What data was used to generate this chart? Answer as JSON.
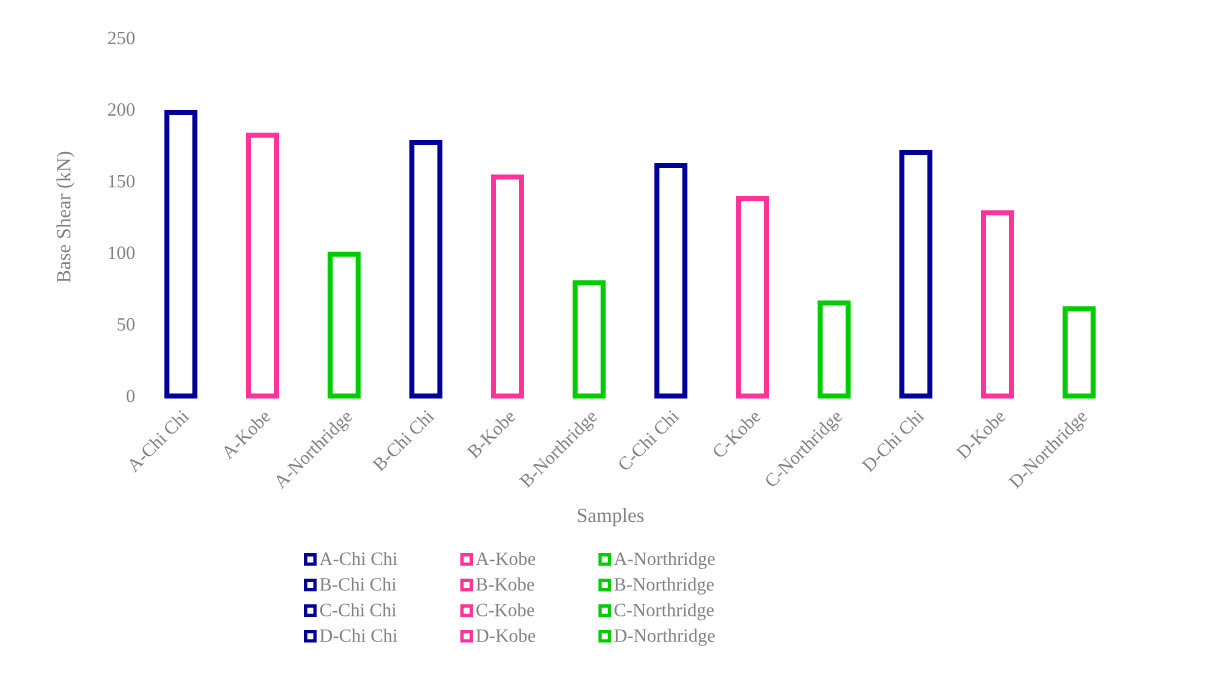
{
  "chart_data": {
    "type": "bar",
    "xlabel": "Samples",
    "ylabel": "Base Shear (kN)",
    "categories": [
      "A-Chi Chi",
      "A-Kobe",
      "A-Northridge",
      "B-Chi Chi",
      "B-Kobe",
      "B-Northridge",
      "C-Chi Chi",
      "C-Kobe",
      "C-Northridge",
      "D-Chi Chi",
      "D-Kobe",
      "D-Northridge"
    ],
    "series": [
      {
        "name": "A-Chi Chi",
        "color": "#000099",
        "values": [
          198,
          null,
          null,
          null,
          null,
          null,
          null,
          null,
          null,
          null,
          null,
          null
        ]
      },
      {
        "name": "A-Kobe",
        "color": "#ff3399",
        "values": [
          null,
          182,
          null,
          null,
          null,
          null,
          null,
          null,
          null,
          null,
          null,
          null
        ]
      },
      {
        "name": "A-Northridge",
        "color": "#00cc00",
        "values": [
          null,
          null,
          99,
          null,
          null,
          null,
          null,
          null,
          null,
          null,
          null,
          null
        ]
      },
      {
        "name": "B-Chi Chi",
        "color": "#000099",
        "values": [
          null,
          null,
          null,
          177,
          null,
          null,
          null,
          null,
          null,
          null,
          null,
          null
        ]
      },
      {
        "name": "B-Kobe",
        "color": "#ff3399",
        "values": [
          null,
          null,
          null,
          null,
          153,
          null,
          null,
          null,
          null,
          null,
          null,
          null
        ]
      },
      {
        "name": "B-Northridge",
        "color": "#00cc00",
        "values": [
          null,
          null,
          null,
          null,
          null,
          79,
          null,
          null,
          null,
          null,
          null,
          null
        ]
      },
      {
        "name": "C-Chi Chi",
        "color": "#000099",
        "values": [
          null,
          null,
          null,
          null,
          null,
          null,
          161,
          null,
          null,
          null,
          null,
          null
        ]
      },
      {
        "name": "C-Kobe",
        "color": "#ff3399",
        "values": [
          null,
          null,
          null,
          null,
          null,
          null,
          null,
          138,
          null,
          null,
          null,
          null
        ]
      },
      {
        "name": "C-Northridge",
        "color": "#00cc00",
        "values": [
          null,
          null,
          null,
          null,
          null,
          null,
          null,
          null,
          65,
          null,
          null,
          null
        ]
      },
      {
        "name": "D-Chi Chi",
        "color": "#000099",
        "values": [
          null,
          null,
          null,
          null,
          null,
          null,
          null,
          null,
          null,
          170,
          null,
          null
        ]
      },
      {
        "name": "D-Kobe",
        "color": "#ff3399",
        "values": [
          null,
          null,
          null,
          null,
          null,
          null,
          null,
          null,
          null,
          null,
          128,
          null
        ]
      },
      {
        "name": "D-Northridge",
        "color": "#00cc00",
        "values": [
          null,
          null,
          null,
          null,
          null,
          null,
          null,
          null,
          null,
          null,
          null,
          61
        ]
      }
    ],
    "ylim": [
      0,
      250
    ],
    "yticks": [
      0,
      50,
      100,
      150,
      200,
      250
    ],
    "grid": false,
    "legend": "bottom"
  }
}
